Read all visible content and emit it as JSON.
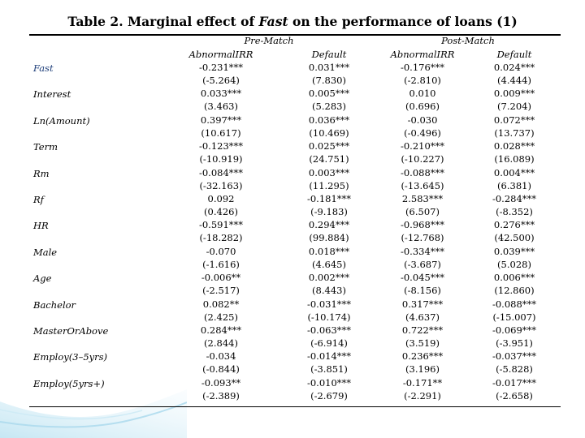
{
  "title": {
    "prefix": "Table 2. Marginal effect of ",
    "emph": "Fast",
    "suffix": " on the performance of loans (1)"
  },
  "groups": [
    "Pre-Match",
    "Post-Match"
  ],
  "columns": [
    "AbnormalIRR",
    "Default",
    "AbnormalIRR",
    "Default"
  ],
  "rows": [
    {
      "label": "Fast",
      "coef": [
        "-0.231***",
        "0.031***",
        "-0.176***",
        "0.024***"
      ],
      "t": [
        "(-5.264)",
        "(7.830)",
        "(-2.810)",
        "(4.444)"
      ]
    },
    {
      "label": "Interest",
      "coef": [
        "0.033***",
        "0.005***",
        "0.010",
        "0.009***"
      ],
      "t": [
        "(3.463)",
        "(5.283)",
        "(0.696)",
        "(7.204)"
      ]
    },
    {
      "label": "Ln(Amount)",
      "coef": [
        "0.397***",
        "0.036***",
        "-0.030",
        "0.072***"
      ],
      "t": [
        "(10.617)",
        "(10.469)",
        "(-0.496)",
        "(13.737)"
      ]
    },
    {
      "label": "Term",
      "coef": [
        "-0.123***",
        "0.025***",
        "-0.210***",
        "0.028***"
      ],
      "t": [
        "(-10.919)",
        "(24.751)",
        "(-10.227)",
        "(16.089)"
      ]
    },
    {
      "label": "Rm",
      "coef": [
        "-0.084***",
        "0.003***",
        "-0.088***",
        "0.004***"
      ],
      "t": [
        "(-32.163)",
        "(11.295)",
        "(-13.645)",
        "(6.381)"
      ]
    },
    {
      "label": "Rf",
      "coef": [
        "0.092",
        "-0.181***",
        "2.583***",
        "-0.284***"
      ],
      "t": [
        "(0.426)",
        "(-9.183)",
        "(6.507)",
        "(-8.352)"
      ]
    },
    {
      "label": "HR",
      "coef": [
        "-0.591***",
        "0.294***",
        "-0.968***",
        "0.276***"
      ],
      "t": [
        "(-18.282)",
        "(99.884)",
        "(-12.768)",
        "(42.500)"
      ]
    },
    {
      "label": "Male",
      "coef": [
        "-0.070",
        "0.018***",
        "-0.334***",
        "0.039***"
      ],
      "t": [
        "(-1.616)",
        "(4.645)",
        "(-3.687)",
        "(5.028)"
      ]
    },
    {
      "label": "Age",
      "coef": [
        "-0.006**",
        "0.002***",
        "-0.045***",
        "0.006***"
      ],
      "t": [
        "(-2.517)",
        "(8.443)",
        "(-8.156)",
        "(12.860)"
      ]
    },
    {
      "label": "Bachelor",
      "coef": [
        "0.082**",
        "-0.031***",
        "0.317***",
        "-0.088***"
      ],
      "t": [
        "(2.425)",
        "(-10.174)",
        "(4.637)",
        "(-15.007)"
      ]
    },
    {
      "label": "MasterOrAbove",
      "coef": [
        "0.284***",
        "-0.063***",
        "0.722***",
        "-0.069***"
      ],
      "t": [
        "(2.844)",
        "(-6.914)",
        "(3.519)",
        "(-3.951)"
      ]
    },
    {
      "label": "Employ(3–5yrs)",
      "coef": [
        "-0.034",
        "-0.014***",
        "0.236***",
        "-0.037***"
      ],
      "t": [
        "(-0.844)",
        "(-3.851)",
        "(3.196)",
        "(-5.828)"
      ]
    },
    {
      "label": "Employ(5yrs+)",
      "coef": [
        "-0.093**",
        "-0.010***",
        "-0.171**",
        "-0.017***"
      ],
      "t": [
        "(-2.389)",
        "(-2.679)",
        "(-2.291)",
        "(-2.658)"
      ]
    }
  ]
}
